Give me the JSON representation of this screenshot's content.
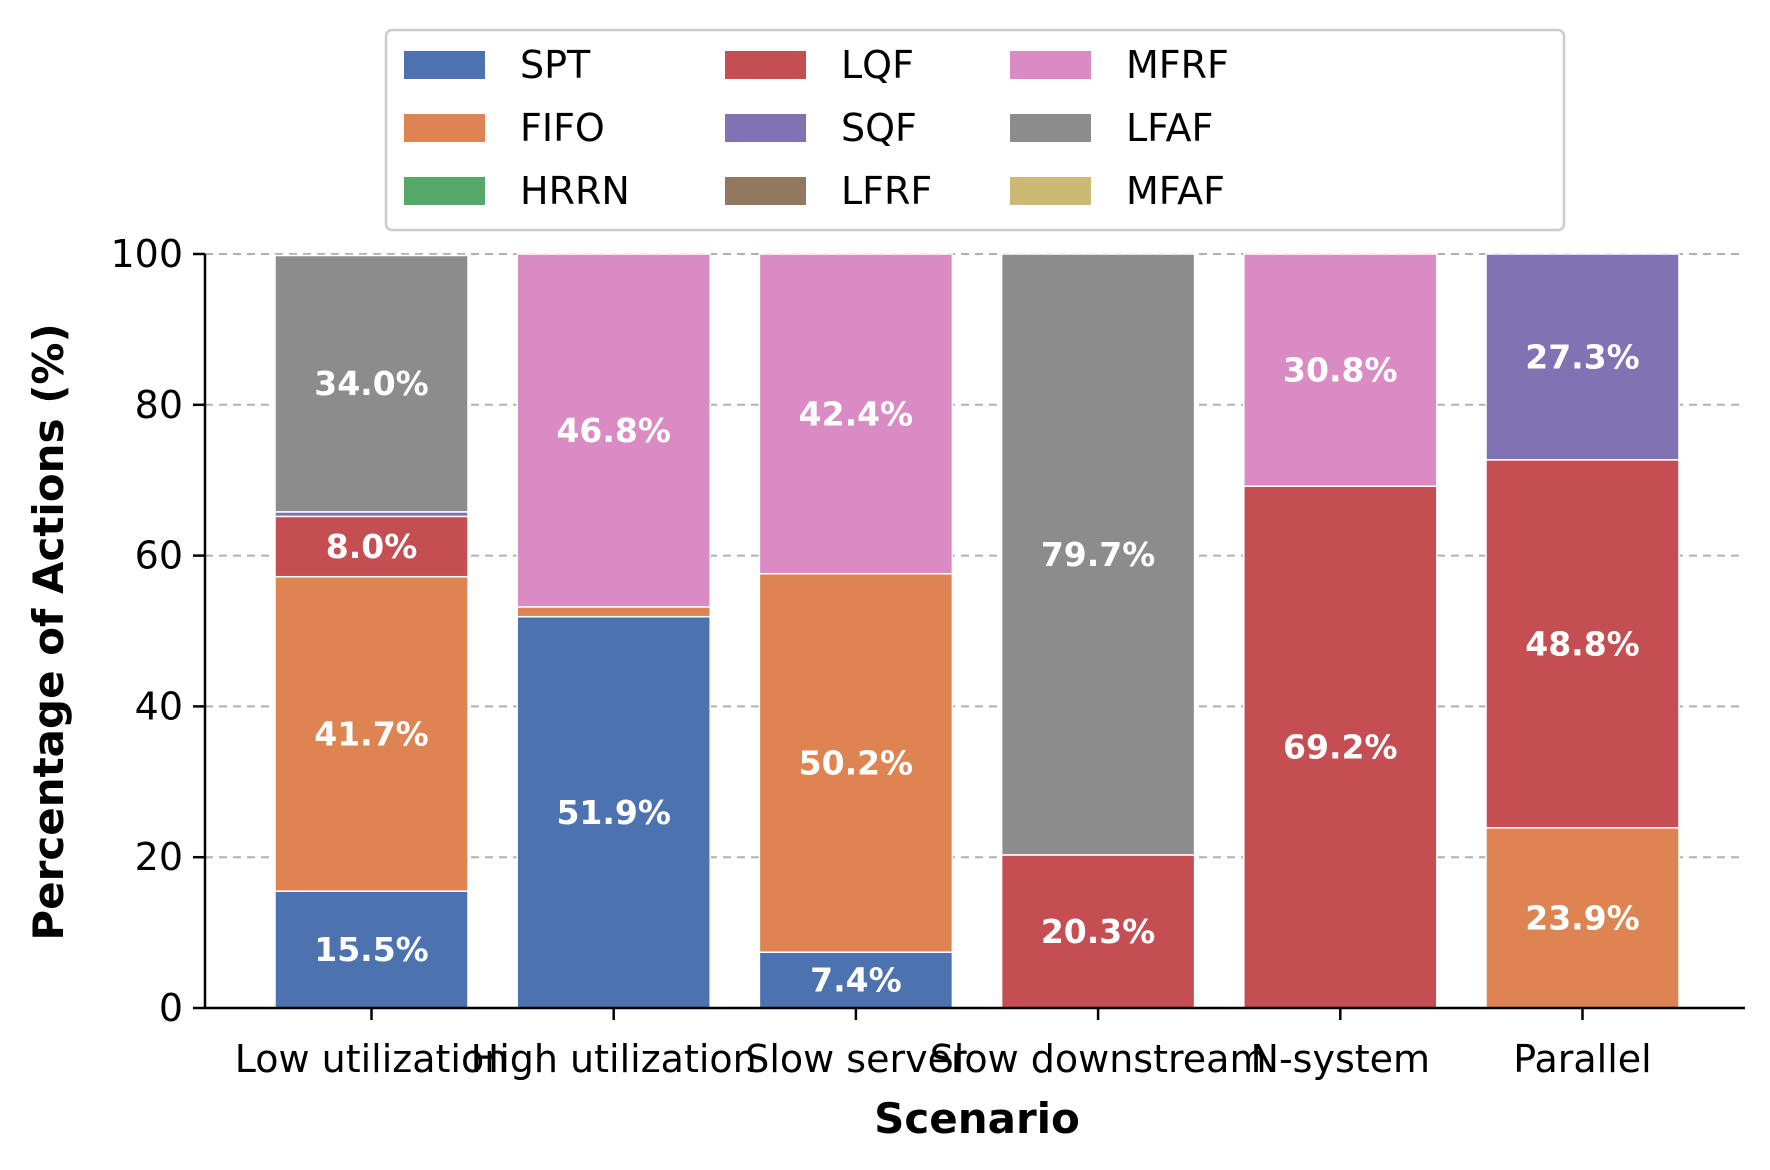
{
  "chart_data": {
    "type": "bar",
    "stacked": true,
    "xlabel": "Scenario",
    "ylabel": "Percentage of Actions (%)",
    "ylim": [
      0,
      100
    ],
    "yticks": [
      0,
      20,
      40,
      60,
      80,
      100
    ],
    "grid": "horizontal dashed",
    "legend_position": "top-center",
    "categories": [
      "Low utilization",
      "High utilization",
      "Slow server",
      "Slow downstream",
      "N-system",
      "Parallel"
    ],
    "series": [
      {
        "name": "SPT",
        "color": "#4c72b0",
        "values": [
          15.5,
          51.9,
          7.4,
          0,
          0,
          0
        ]
      },
      {
        "name": "FIFO",
        "color": "#dd8452",
        "values": [
          41.7,
          1.3,
          50.2,
          0,
          0,
          23.9
        ]
      },
      {
        "name": "HRRN",
        "color": "#55a868",
        "values": [
          0,
          0,
          0,
          0,
          0,
          0
        ]
      },
      {
        "name": "LQF",
        "color": "#c44e52",
        "values": [
          8.0,
          0,
          0,
          20.3,
          69.2,
          48.8
        ]
      },
      {
        "name": "SQF",
        "color": "#8172b3",
        "values": [
          0.6,
          0,
          0,
          0,
          0,
          27.3
        ]
      },
      {
        "name": "LFRF",
        "color": "#937860",
        "values": [
          0,
          0,
          0,
          0,
          0,
          0
        ]
      },
      {
        "name": "MFRF",
        "color": "#da8bc3",
        "values": [
          0,
          46.8,
          42.4,
          0,
          30.8,
          0
        ]
      },
      {
        "name": "LFAF",
        "color": "#8c8c8c",
        "values": [
          34.0,
          0,
          0,
          79.7,
          0,
          0
        ]
      },
      {
        "name": "MFAF",
        "color": "#ccb974",
        "values": [
          0,
          0,
          0,
          0,
          0,
          0
        ]
      }
    ],
    "data_labels": [
      {
        "category": 0,
        "series": "SPT",
        "text": "15.5%"
      },
      {
        "category": 0,
        "series": "FIFO",
        "text": "41.7%"
      },
      {
        "category": 0,
        "series": "LQF",
        "text": "8.0%"
      },
      {
        "category": 0,
        "series": "LFAF",
        "text": "34.0%"
      },
      {
        "category": 1,
        "series": "SPT",
        "text": "51.9%"
      },
      {
        "category": 1,
        "series": "MFRF",
        "text": "46.8%"
      },
      {
        "category": 2,
        "series": "SPT",
        "text": "7.4%"
      },
      {
        "category": 2,
        "series": "FIFO",
        "text": "50.2%"
      },
      {
        "category": 2,
        "series": "MFRF",
        "text": "42.4%"
      },
      {
        "category": 3,
        "series": "LQF",
        "text": "20.3%"
      },
      {
        "category": 3,
        "series": "LFAF",
        "text": "79.7%"
      },
      {
        "category": 4,
        "series": "LQF",
        "text": "69.2%"
      },
      {
        "category": 4,
        "series": "MFRF",
        "text": "30.8%"
      },
      {
        "category": 5,
        "series": "FIFO",
        "text": "23.9%"
      },
      {
        "category": 5,
        "series": "LQF",
        "text": "48.8%"
      },
      {
        "category": 5,
        "series": "SQF",
        "text": "27.3%"
      }
    ]
  }
}
